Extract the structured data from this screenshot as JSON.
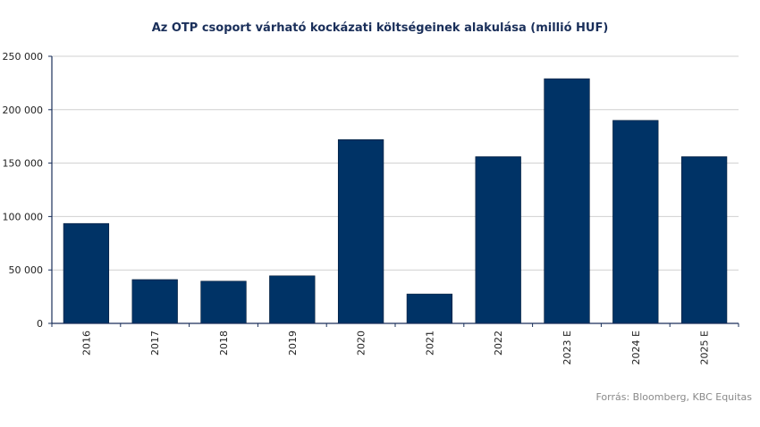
{
  "chart_data": {
    "type": "bar",
    "title": "Az OTP csoport várható kockázati költségeinek alakulása (millió HUF)",
    "xlabel": "",
    "ylabel": "",
    "categories": [
      "2016",
      "2017",
      "2018",
      "2019",
      "2020",
      "2021",
      "2022",
      "2023 E",
      "2024 E",
      "2025 E"
    ],
    "values": [
      93500,
      41000,
      39500,
      44500,
      172000,
      27500,
      156000,
      229000,
      190000,
      156000
    ],
    "ylim": [
      0,
      250000
    ],
    "yticks": [
      0,
      50000,
      100000,
      150000,
      200000,
      250000
    ],
    "ytick_labels": [
      "0",
      "50 000",
      "100 000",
      "150 000",
      "200 000",
      "250 000"
    ],
    "grid": true,
    "bar_color": "#003366",
    "source": "Forrás: Bloomberg,  KBC Equitas"
  }
}
